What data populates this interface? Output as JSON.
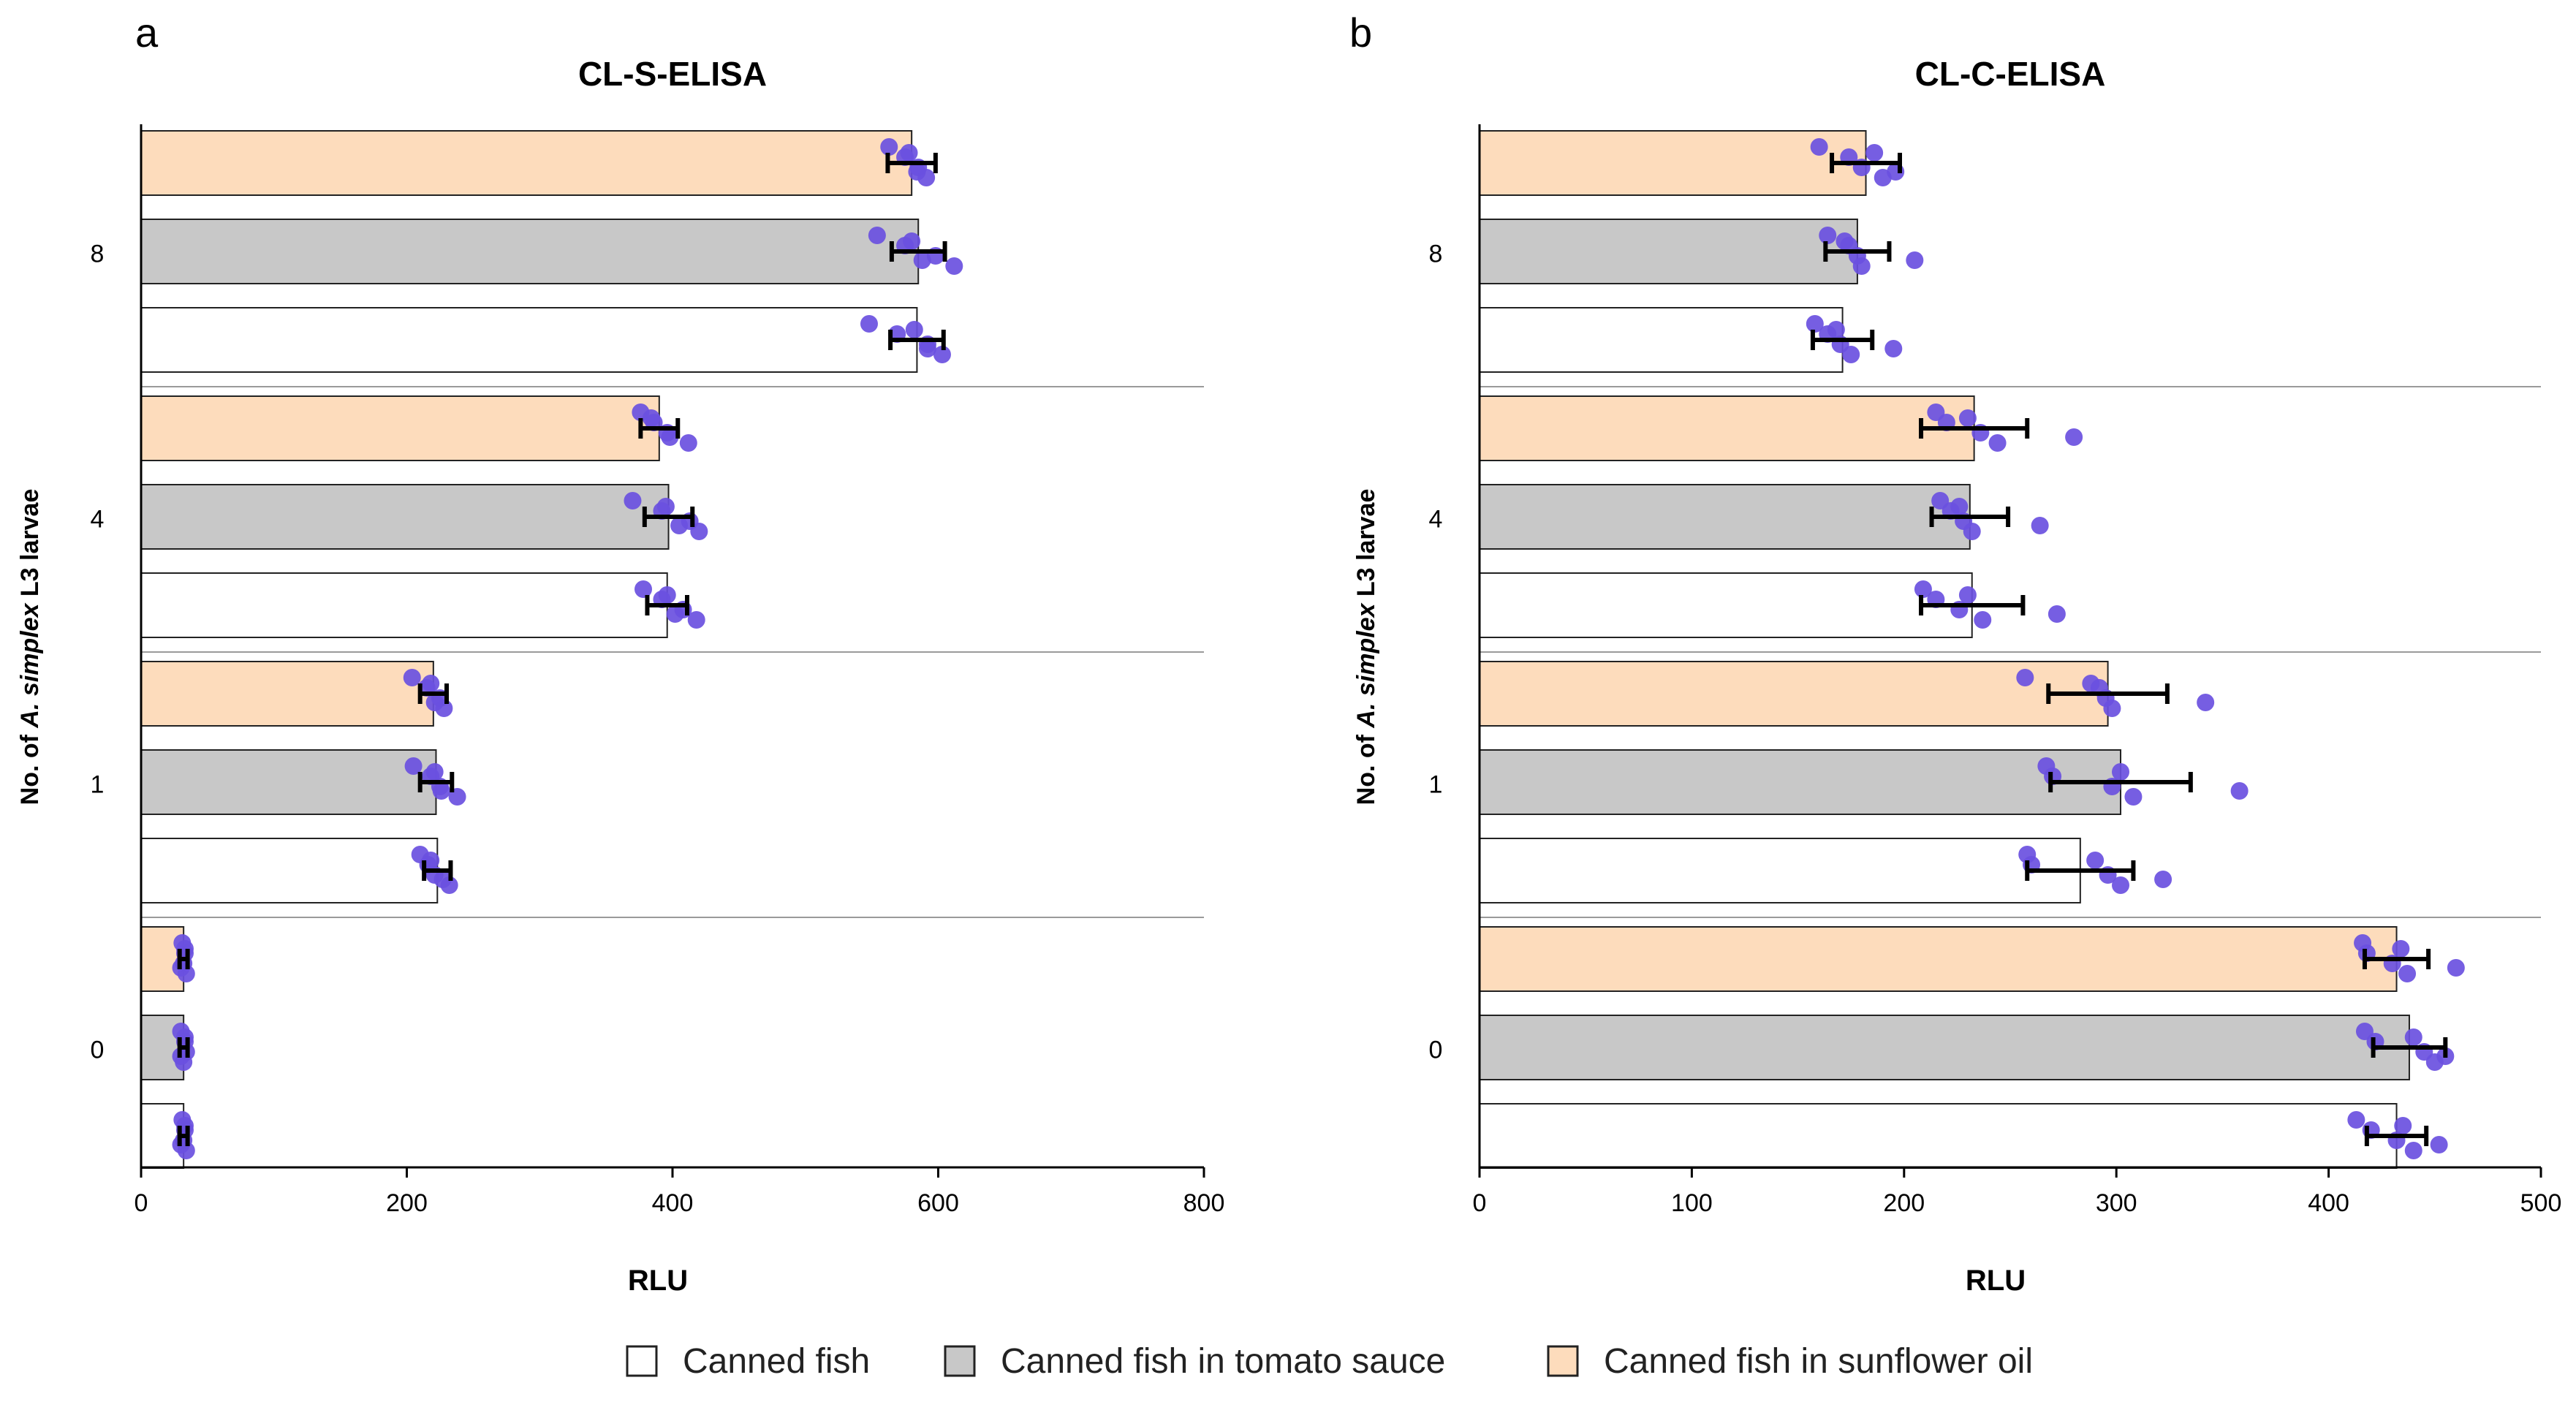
{
  "legend": [
    {
      "label": "Canned fish",
      "color": "#ffffff"
    },
    {
      "label": "Canned fish in tomato sauce",
      "color": "#c8c8c8"
    },
    {
      "label": "Canned fish in sunflower oil",
      "color": "#fddcbc"
    }
  ],
  "style": {
    "point_color": "#6a50e0",
    "bar_stroke": "#222222",
    "separator": "#9a9a9a"
  },
  "chart_data": [
    {
      "type": "bar",
      "orientation": "horizontal",
      "panel": "a",
      "title": "CL-S-ELISA",
      "xlabel": "RLU",
      "ylabel_parts": [
        "No. of ",
        "A. simplex",
        " L3 larvae"
      ],
      "xlim": [
        0,
        800
      ],
      "xticks": [
        "0",
        "200",
        "400",
        "600",
        "800"
      ],
      "xtick_values": [
        0,
        200,
        400,
        600,
        800
      ],
      "categories": [
        "8",
        "4",
        "1",
        "0"
      ],
      "series": [
        {
          "name": "Canned fish in sunflower oil",
          "values": [
            580,
            390,
            220,
            32
          ],
          "errors": [
            18,
            14,
            10,
            3
          ],
          "points": [
            [
              563,
              575,
              585,
              591,
              584,
              578
            ],
            [
              376,
              386,
              396,
              412,
              398,
              384
            ],
            [
              204,
              215,
              225,
              228,
              221,
              218
            ],
            [
              31,
              33,
              32,
              34,
              30,
              33
            ]
          ]
        },
        {
          "name": "Canned fish in tomato sauce",
          "values": [
            585,
            397,
            222,
            32
          ],
          "errors": [
            20,
            18,
            12,
            3
          ],
          "points": [
            [
              554,
              575,
              598,
              612,
              588,
              580
            ],
            [
              370,
              392,
              413,
              420,
              405,
              395
            ],
            [
              205,
              218,
              225,
              238,
              226,
              221
            ],
            [
              30,
              33,
              34,
              32,
              30,
              33
            ]
          ]
        },
        {
          "name": "Canned fish",
          "values": [
            584,
            396,
            223,
            32
          ],
          "errors": [
            20,
            15,
            10,
            3
          ],
          "points": [
            [
              548,
              569,
              592,
              603,
              592,
              582
            ],
            [
              378,
              392,
              408,
              418,
              402,
              396
            ],
            [
              210,
              216,
              221,
              232,
              227,
              218
            ],
            [
              31,
              33,
              32,
              34,
              30,
              33
            ]
          ]
        }
      ]
    },
    {
      "type": "bar",
      "orientation": "horizontal",
      "panel": "b",
      "title": "CL-C-ELISA",
      "xlabel": "RLU",
      "ylabel_parts": [
        "No. of ",
        "A. simplex",
        " L3 larvae"
      ],
      "xlim": [
        0,
        500
      ],
      "xticks": [
        "0",
        "100",
        "200",
        "300",
        "400",
        "500"
      ],
      "xtick_values": [
        0,
        100,
        200,
        300,
        400,
        500
      ],
      "categories": [
        "8",
        "4",
        "1",
        "0"
      ],
      "series": [
        {
          "name": "Canned fish in sunflower oil",
          "values": [
            182,
            233,
            296,
            432
          ],
          "errors": [
            16,
            25,
            28,
            15
          ],
          "points": [
            [
              160,
              174,
              180,
              190,
              196,
              186
            ],
            [
              215,
              220,
              236,
              244,
              280,
              230
            ],
            [
              257,
              292,
              295,
              298,
              342,
              288
            ],
            [
              416,
              418,
              430,
              437,
              460,
              434
            ]
          ]
        },
        {
          "name": "Canned fish in tomato sauce",
          "values": [
            178,
            231,
            302,
            438
          ],
          "errors": [
            15,
            18,
            33,
            17
          ],
          "points": [
            [
              164,
              174,
              178,
              180,
              205,
              172
            ],
            [
              217,
              222,
              228,
              232,
              264,
              226
            ],
            [
              267,
              270,
              298,
              308,
              358,
              302
            ],
            [
              417,
              422,
              445,
              450,
              455,
              440
            ]
          ]
        },
        {
          "name": "Canned fish",
          "values": [
            171,
            232,
            283,
            432
          ],
          "errors": [
            14,
            24,
            25,
            14
          ],
          "points": [
            [
              158,
              164,
              170,
              175,
              195,
              168
            ],
            [
              209,
              215,
              226,
              237,
              272,
              230
            ],
            [
              258,
              260,
              296,
              302,
              322,
              290
            ],
            [
              413,
              420,
              432,
              440,
              452,
              435
            ]
          ]
        }
      ]
    }
  ]
}
